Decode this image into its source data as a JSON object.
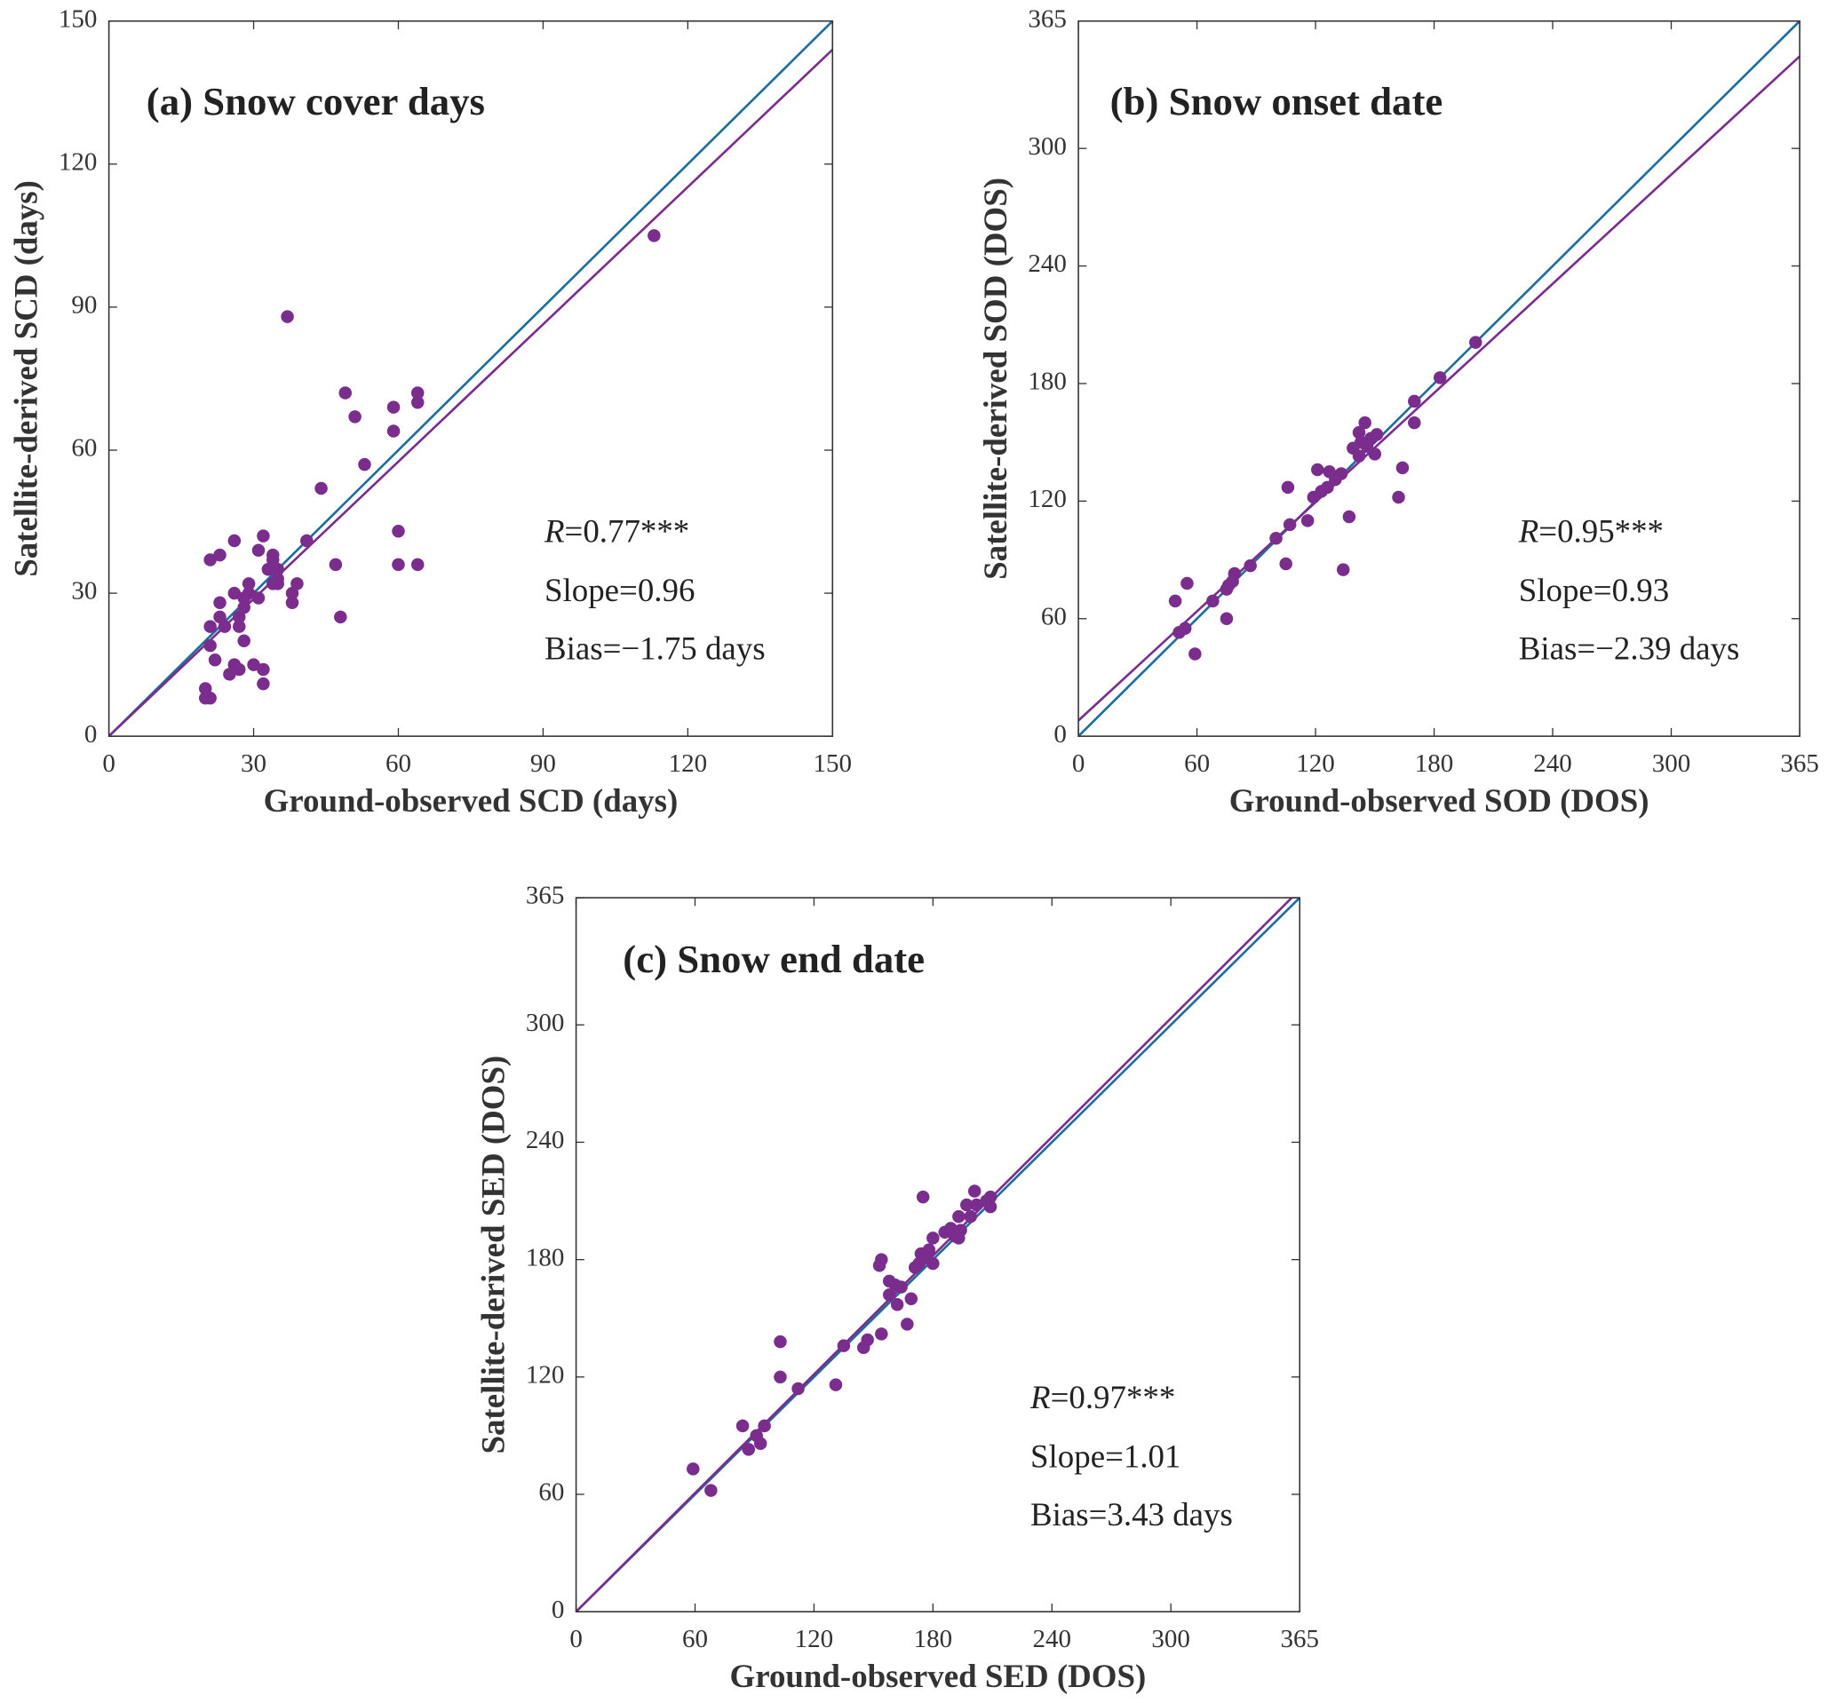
{
  "chart_data": [
    {
      "type": "scatter",
      "title": "(a) Snow cover days",
      "xlabel": "Ground-observed SCD (days)",
      "ylabel": "Satellite-derived SCD (days)",
      "xlim": [
        0,
        150
      ],
      "ylim": [
        0,
        150
      ],
      "xticks": [
        0,
        30,
        60,
        90,
        120,
        150
      ],
      "yticks": [
        0,
        30,
        60,
        90,
        120,
        150
      ],
      "r_symbol": "R",
      "r_text": "=0.77***",
      "slope_text": "Slope=0.96",
      "bias_text": "Bias=−1.75 days",
      "color": "#7b2d8e",
      "x": [
        113,
        37,
        49,
        64,
        64,
        51,
        59,
        59,
        53,
        44,
        41,
        60,
        47,
        60,
        64,
        48,
        39,
        38,
        38,
        21,
        23,
        26,
        32,
        31,
        34,
        34,
        33,
        35,
        35,
        34,
        35,
        29,
        29,
        26,
        28,
        31,
        23,
        23,
        27,
        27,
        24,
        21,
        28,
        21,
        22,
        26,
        27,
        30,
        32,
        25,
        32,
        20,
        20,
        21,
        28
      ],
      "y": [
        105,
        88,
        72,
        72,
        70,
        67,
        69,
        64,
        57,
        52,
        41,
        43,
        36,
        36,
        36,
        25,
        32,
        30,
        28,
        37,
        38,
        41,
        42,
        39,
        38,
        37,
        35,
        35,
        33,
        32,
        32,
        32,
        30,
        30,
        29,
        29,
        28,
        25,
        25,
        23,
        23,
        23,
        20,
        19,
        16,
        15,
        14,
        15,
        14,
        13,
        11,
        10,
        8,
        8,
        27
      ],
      "lines": [
        {
          "color": "#1b6e9e",
          "x": [
            0,
            150
          ],
          "y": [
            0,
            150
          ]
        },
        {
          "color": "#7b2d8e",
          "x": [
            0,
            150
          ],
          "y": [
            0,
            144
          ]
        }
      ]
    },
    {
      "type": "scatter",
      "title": "(b) Snow onset date",
      "xlabel": "Ground-observed SOD (DOS)",
      "ylabel": "Satellite-derived SOD (DOS)",
      "xlim": [
        0,
        365
      ],
      "ylim": [
        0,
        365
      ],
      "xticks": [
        0,
        60,
        120,
        180,
        240,
        300,
        365
      ],
      "yticks": [
        0,
        60,
        120,
        180,
        240,
        300,
        365
      ],
      "r_symbol": "R",
      "r_text": "=0.95***",
      "slope_text": "Slope=0.93",
      "bias_text": "Bias=−2.39 days",
      "color": "#7b2d8e",
      "x": [
        201,
        183,
        170,
        170,
        145,
        164,
        162,
        121,
        106,
        127,
        143,
        148,
        151,
        146,
        150,
        142,
        139,
        142,
        133,
        130,
        126,
        123,
        119,
        137,
        116,
        107,
        100,
        87,
        105,
        134,
        79,
        78,
        75,
        68,
        75,
        49,
        55,
        51,
        54,
        59,
        76
      ],
      "y": [
        201,
        183,
        171,
        160,
        160,
        137,
        122,
        136,
        127,
        135,
        150,
        152,
        154,
        148,
        144,
        143,
        147,
        155,
        134,
        131,
        127,
        125,
        122,
        112,
        110,
        108,
        101,
        87,
        88,
        85,
        83,
        79,
        75,
        69,
        60,
        69,
        78,
        53,
        55,
        42,
        77
      ],
      "lines": [
        {
          "color": "#1b6e9e",
          "x": [
            0,
            365
          ],
          "y": [
            0,
            365
          ]
        },
        {
          "color": "#7b2d8e",
          "x": [
            0,
            365
          ],
          "y": [
            8,
            347
          ]
        }
      ]
    },
    {
      "type": "scatter",
      "title": "(c) Snow end date",
      "xlabel": "Ground-observed SED (DOS)",
      "ylabel": "Satellite-derived SED (DOS)",
      "xlim": [
        0,
        365
      ],
      "ylim": [
        0,
        365
      ],
      "xticks": [
        0,
        60,
        120,
        180,
        240,
        300,
        365
      ],
      "yticks": [
        0,
        60,
        120,
        180,
        240,
        300,
        365
      ],
      "r_symbol": "R",
      "r_text": "=0.97***",
      "slope_text": "Slope=1.01",
      "bias_text": "Bias=3.43 days",
      "color": "#7b2d8e",
      "x": [
        59,
        68,
        84,
        87,
        91,
        93,
        95,
        103,
        103,
        112,
        131,
        135,
        145,
        147,
        154,
        153,
        154,
        158,
        158,
        161,
        162,
        164,
        167,
        169,
        171,
        173,
        175,
        174,
        177,
        180,
        178,
        180,
        186,
        191,
        194,
        193,
        197,
        201,
        199,
        202,
        207,
        209,
        209,
        193,
        189
      ],
      "y": [
        73,
        62,
        95,
        83,
        90,
        86,
        95,
        138,
        120,
        114,
        116,
        136,
        135,
        139,
        142,
        177,
        180,
        169,
        162,
        167,
        157,
        166,
        147,
        160,
        176,
        178,
        212,
        183,
        181,
        178,
        185,
        191,
        194,
        192,
        195,
        202,
        208,
        215,
        202,
        208,
        210,
        207,
        212,
        191,
        196
      ],
      "lines": [
        {
          "color": "#1b6e9e",
          "x": [
            0,
            365
          ],
          "y": [
            0,
            365
          ]
        },
        {
          "color": "#7b2d8e",
          "x": [
            0,
            361
          ],
          "y": [
            0,
            365
          ]
        }
      ]
    }
  ]
}
